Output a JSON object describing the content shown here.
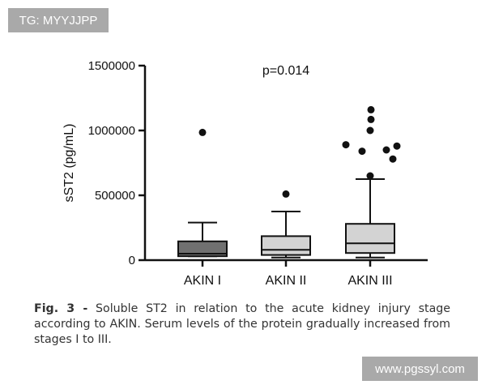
{
  "watermarks": {
    "top_left": "TG: MYYJJPP",
    "bottom_right": "www.pgssyl.com"
  },
  "caption": {
    "label": "Fig. 3 -",
    "text": "Soluble ST2 in relation to the acute kidney injury stage according to AKIN. Serum levels of the protein gradually increased from stages I to III."
  },
  "chart_data": {
    "type": "box",
    "ylabel": "sST2 (pg/mL)",
    "xlabel": "",
    "ylim": [
      0,
      1500000
    ],
    "yticks": [
      0,
      500000,
      1000000,
      1500000
    ],
    "ytick_labels": [
      "0",
      "500000",
      "1000000",
      "1500000"
    ],
    "annotation": "p=0.014",
    "grid": false,
    "categories": [
      "AKIN I",
      "AKIN II",
      "AKIN III"
    ],
    "boxes": [
      {
        "category": "AKIN I",
        "whisker_low": 30000,
        "q1": 30000,
        "median": 50000,
        "q3": 145000,
        "whisker_high": 290000,
        "outliers": [
          985000
        ],
        "fill": "#707070"
      },
      {
        "category": "AKIN II",
        "whisker_low": 20000,
        "q1": 40000,
        "median": 80000,
        "q3": 185000,
        "whisker_high": 375000,
        "outliers": [
          510000
        ],
        "fill": "#d3d3d3"
      },
      {
        "category": "AKIN III",
        "whisker_low": 20000,
        "q1": 55000,
        "median": 130000,
        "q3": 280000,
        "whisker_high": 625000,
        "outliers": [
          650000,
          780000,
          840000,
          850000,
          880000,
          890000,
          1000000,
          1085000,
          1160000
        ],
        "fill": "#d3d3d3"
      }
    ]
  }
}
